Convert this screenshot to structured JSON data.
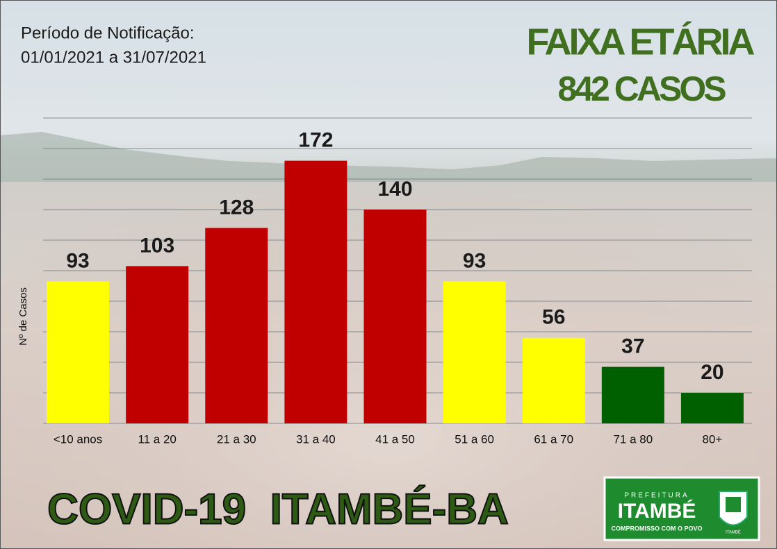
{
  "chart_data": {
    "type": "bar",
    "title": "FAIXA ETÁRIA",
    "subtitle": "842 CASOS",
    "period_label": "Período de Notificação:",
    "period": "01/01/2021 a 31/07/2021",
    "ylabel": "Nº de Casos",
    "categories": [
      "<10 anos",
      "11 a 20",
      "21 a 30",
      "31 a 40",
      "41 a 50",
      "51 a 60",
      "61 a 70",
      "71 a 80",
      "80+"
    ],
    "values": [
      93,
      103,
      128,
      172,
      140,
      93,
      56,
      37,
      20
    ],
    "colors": [
      "#ffff00",
      "#c00000",
      "#c00000",
      "#c00000",
      "#c00000",
      "#ffff00",
      "#ffff00",
      "#006000",
      "#006000"
    ],
    "ylim": [
      0,
      200
    ],
    "yticks": [
      0,
      20,
      40,
      60,
      80,
      100,
      120,
      140,
      160,
      180,
      200
    ],
    "grid": true
  },
  "footer": "COVID-19  ITAMBÉ-BA",
  "logo": {
    "top": "PREFEITURA",
    "name": "ITAMBÉ",
    "motto": "COMPROMISSO COM O POVO",
    "crest": "ITAMBÉ"
  }
}
